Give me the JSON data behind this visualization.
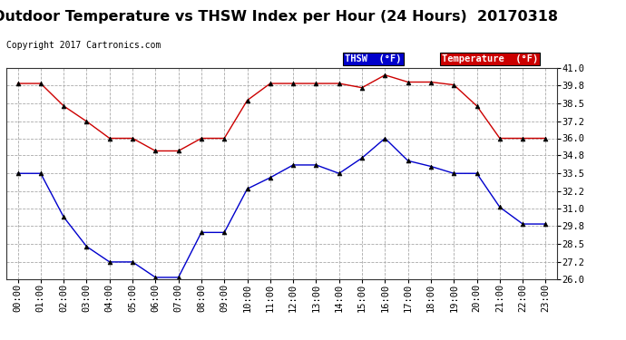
{
  "title": "Outdoor Temperature vs THSW Index per Hour (24 Hours)  20170318",
  "copyright": "Copyright 2017 Cartronics.com",
  "hours": [
    "00:00",
    "01:00",
    "02:00",
    "03:00",
    "04:00",
    "05:00",
    "06:00",
    "07:00",
    "08:00",
    "09:00",
    "10:00",
    "11:00",
    "12:00",
    "13:00",
    "14:00",
    "15:00",
    "16:00",
    "17:00",
    "18:00",
    "19:00",
    "20:00",
    "21:00",
    "22:00",
    "23:00"
  ],
  "temperature": [
    39.9,
    39.9,
    38.3,
    37.2,
    36.0,
    36.0,
    35.1,
    35.1,
    36.0,
    36.0,
    38.7,
    39.9,
    39.9,
    39.9,
    39.9,
    39.6,
    40.5,
    40.0,
    40.0,
    39.8,
    38.3,
    36.0,
    36.0,
    36.0
  ],
  "thsw": [
    33.5,
    33.5,
    30.4,
    28.3,
    27.2,
    27.2,
    26.1,
    26.1,
    29.3,
    29.3,
    32.4,
    33.2,
    34.1,
    34.1,
    33.5,
    34.6,
    36.0,
    34.4,
    34.0,
    33.5,
    33.5,
    31.1,
    29.9,
    29.9
  ],
  "ylim": [
    26.0,
    41.0
  ],
  "yticks": [
    26.0,
    27.2,
    28.5,
    29.8,
    31.0,
    32.2,
    33.5,
    34.8,
    36.0,
    37.2,
    38.5,
    39.8,
    41.0
  ],
  "bg_color": "#ffffff",
  "plot_bg_color": "#ffffff",
  "grid_color": "#aaaaaa",
  "temp_color": "#cc0000",
  "thsw_color": "#0000cc",
  "legend_thsw_bg": "#0000cc",
  "legend_temp_bg": "#cc0000",
  "title_fontsize": 11.5,
  "copyright_fontsize": 7,
  "tick_fontsize": 7.5
}
